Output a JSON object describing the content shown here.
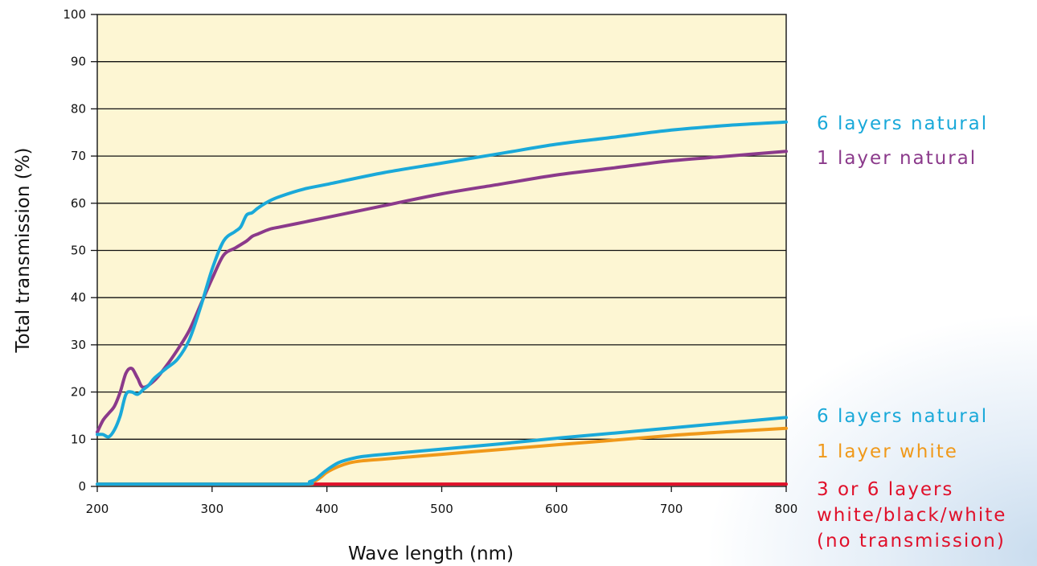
{
  "chart_data": {
    "type": "line",
    "title": "",
    "xlabel": "Wave length (nm)",
    "ylabel": "Total transmission (%)",
    "xlim": [
      200,
      800
    ],
    "ylim": [
      0,
      100
    ],
    "xticks": [
      200,
      300,
      400,
      500,
      600,
      700,
      800
    ],
    "yticks": [
      0,
      10,
      20,
      30,
      40,
      50,
      60,
      70,
      80,
      90,
      100
    ],
    "grid": "horizontal",
    "background_color": "#fdf6d3",
    "legend_placement": "right",
    "series": [
      {
        "name": "6 layers natural",
        "color": "#1aa9d9",
        "x": [
          200,
          205,
          210,
          215,
          220,
          225,
          230,
          235,
          240,
          245,
          250,
          260,
          270,
          280,
          290,
          300,
          310,
          320,
          325,
          330,
          335,
          340,
          350,
          360,
          380,
          400,
          450,
          500,
          550,
          600,
          650,
          700,
          750,
          800
        ],
        "y": [
          11,
          11,
          10.5,
          12,
          15,
          19.5,
          20,
          19.5,
          20.5,
          21.5,
          23,
          25,
          27,
          31,
          38,
          46,
          52,
          54,
          55,
          57.5,
          58,
          59,
          60.5,
          61.5,
          63,
          64,
          66.5,
          68.5,
          70.5,
          72.5,
          74,
          75.5,
          76.5,
          77.2
        ]
      },
      {
        "name": "1 layer natural",
        "color": "#8b3a8b",
        "x": [
          200,
          205,
          210,
          215,
          220,
          225,
          230,
          235,
          240,
          250,
          260,
          270,
          280,
          290,
          300,
          310,
          320,
          330,
          335,
          340,
          350,
          360,
          380,
          400,
          450,
          500,
          550,
          600,
          650,
          700,
          750,
          800
        ],
        "y": [
          11.5,
          14,
          15.5,
          17,
          20,
          24,
          25,
          23,
          21,
          22.5,
          25.5,
          29,
          33,
          38.5,
          44,
          49,
          50.5,
          52,
          53,
          53.5,
          54.5,
          55,
          56,
          57,
          59.5,
          62,
          64,
          66,
          67.5,
          69,
          70,
          71
        ]
      },
      {
        "name": "6 layers natural",
        "color": "#1aa9d9",
        "x": [
          200,
          300,
          380,
          385,
          390,
          395,
          400,
          410,
          420,
          430,
          450,
          500,
          550,
          600,
          650,
          700,
          750,
          800
        ],
        "y": [
          0.5,
          0.5,
          0.5,
          1,
          1.5,
          2.5,
          3.5,
          5,
          5.8,
          6.3,
          6.8,
          7.9,
          9,
          10.2,
          11.3,
          12.4,
          13.5,
          14.6
        ]
      },
      {
        "name": "1 layer white",
        "color": "#f0991a",
        "x": [
          200,
          300,
          380,
          385,
          390,
          395,
          400,
          410,
          420,
          430,
          450,
          500,
          550,
          600,
          650,
          700,
          750,
          800
        ],
        "y": [
          0.5,
          0.5,
          0.5,
          0.8,
          1.2,
          2,
          3,
          4.2,
          5,
          5.4,
          5.8,
          6.8,
          7.8,
          8.8,
          9.8,
          10.8,
          11.6,
          12.3
        ]
      },
      {
        "name": "3 or 6 layers white/black/white (no transmission)",
        "name_lines": [
          "3 or 6 layers",
          "white/black/white",
          "(no transmission)"
        ],
        "color": "#e0102a",
        "x": [
          200,
          800
        ],
        "y": [
          0.5,
          0.5
        ]
      }
    ]
  }
}
